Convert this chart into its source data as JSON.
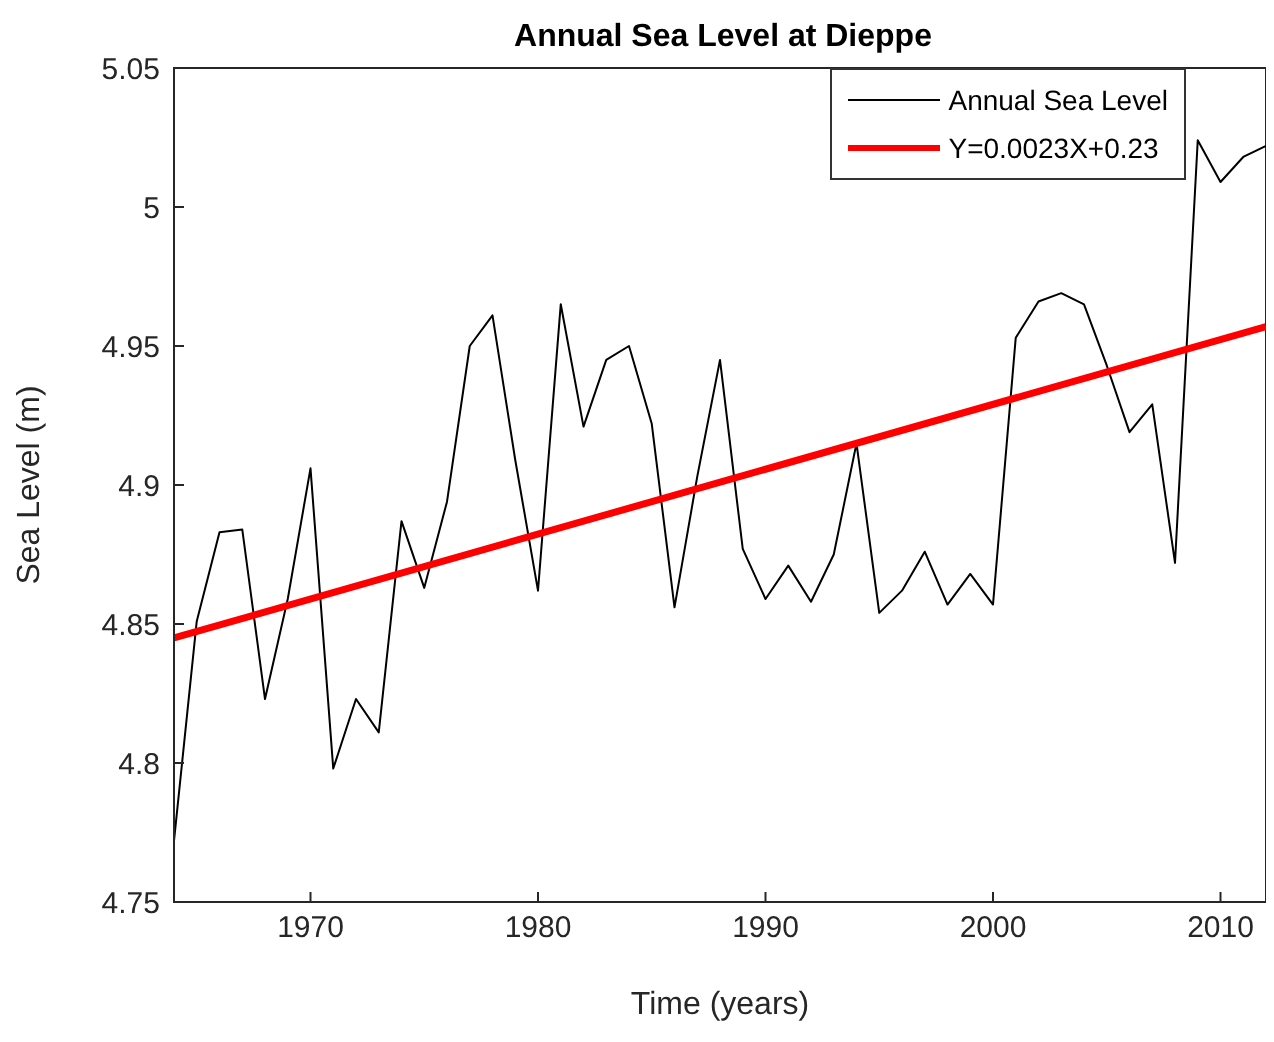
{
  "chart_data": {
    "type": "line",
    "title": "Annual Sea Level at Dieppe",
    "xlabel": "Time (years)",
    "ylabel": "Sea Level (m)",
    "x": [
      1964,
      1965,
      1966,
      1967,
      1968,
      1969,
      1970,
      1971,
      1972,
      1973,
      1974,
      1975,
      1976,
      1977,
      1978,
      1979,
      1980,
      1981,
      1982,
      1983,
      1984,
      1985,
      1986,
      1987,
      1988,
      1989,
      1990,
      1991,
      1992,
      1993,
      1994,
      1995,
      1996,
      1997,
      1998,
      1999,
      2000,
      2001,
      2002,
      2003,
      2004,
      2005,
      2006,
      2007,
      2008,
      2009,
      2010,
      2011,
      2012
    ],
    "series": [
      {
        "name": "Annual Sea Level",
        "color": "#000000",
        "values": [
          4.772,
          4.851,
          4.883,
          4.884,
          4.823,
          4.859,
          4.906,
          4.798,
          4.823,
          4.811,
          4.887,
          4.863,
          4.894,
          4.95,
          4.961,
          4.909,
          4.862,
          4.965,
          4.921,
          4.945,
          4.95,
          4.922,
          4.856,
          4.903,
          4.945,
          4.877,
          4.859,
          4.871,
          4.858,
          4.875,
          4.915,
          4.854,
          4.862,
          4.876,
          4.857,
          4.868,
          4.857,
          4.953,
          4.966,
          4.969,
          4.965,
          4.943,
          4.919,
          4.929,
          4.872,
          5.024,
          5.009,
          5.018,
          5.022
        ]
      },
      {
        "name": "Y=0.0023X+0.23",
        "color": "#ff0000",
        "x": [
          1964,
          2012
        ],
        "values": [
          4.845,
          4.957
        ]
      }
    ],
    "xlim": [
      1964,
      2012
    ],
    "xticks": [
      1970,
      1980,
      1990,
      2000,
      2010
    ],
    "ylim": [
      4.75,
      5.05
    ],
    "yticks": [
      4.75,
      4.8,
      4.85,
      4.9,
      4.95,
      5,
      5.05
    ],
    "grid": false,
    "legend": "top right",
    "marker": "none"
  }
}
